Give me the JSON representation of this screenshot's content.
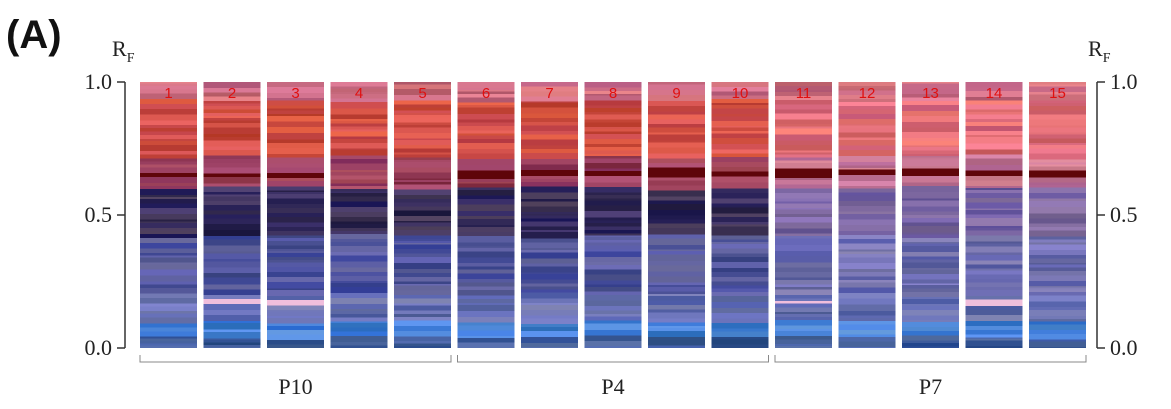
{
  "panel_label": "(A)",
  "left_axis": {
    "title": "R",
    "subscript": "F",
    "ticks": [
      {
        "value": 1,
        "label": "1.0"
      },
      {
        "value": 0.5,
        "label": "0.5"
      },
      {
        "value": 0,
        "label": "0.0"
      }
    ]
  },
  "right_axis": {
    "title": "R",
    "subscript": "F",
    "ticks": [
      {
        "value": 1,
        "label": "1.0"
      },
      {
        "value": 0.5,
        "label": "0.5"
      },
      {
        "value": 0,
        "label": "0.0"
      }
    ]
  },
  "lanes": [
    "1",
    "2",
    "3",
    "4",
    "5",
    "6",
    "7",
    "8",
    "9",
    "10",
    "11",
    "12",
    "13",
    "14",
    "15"
  ],
  "groups": [
    "P10",
    "P4",
    "P7"
  ]
}
